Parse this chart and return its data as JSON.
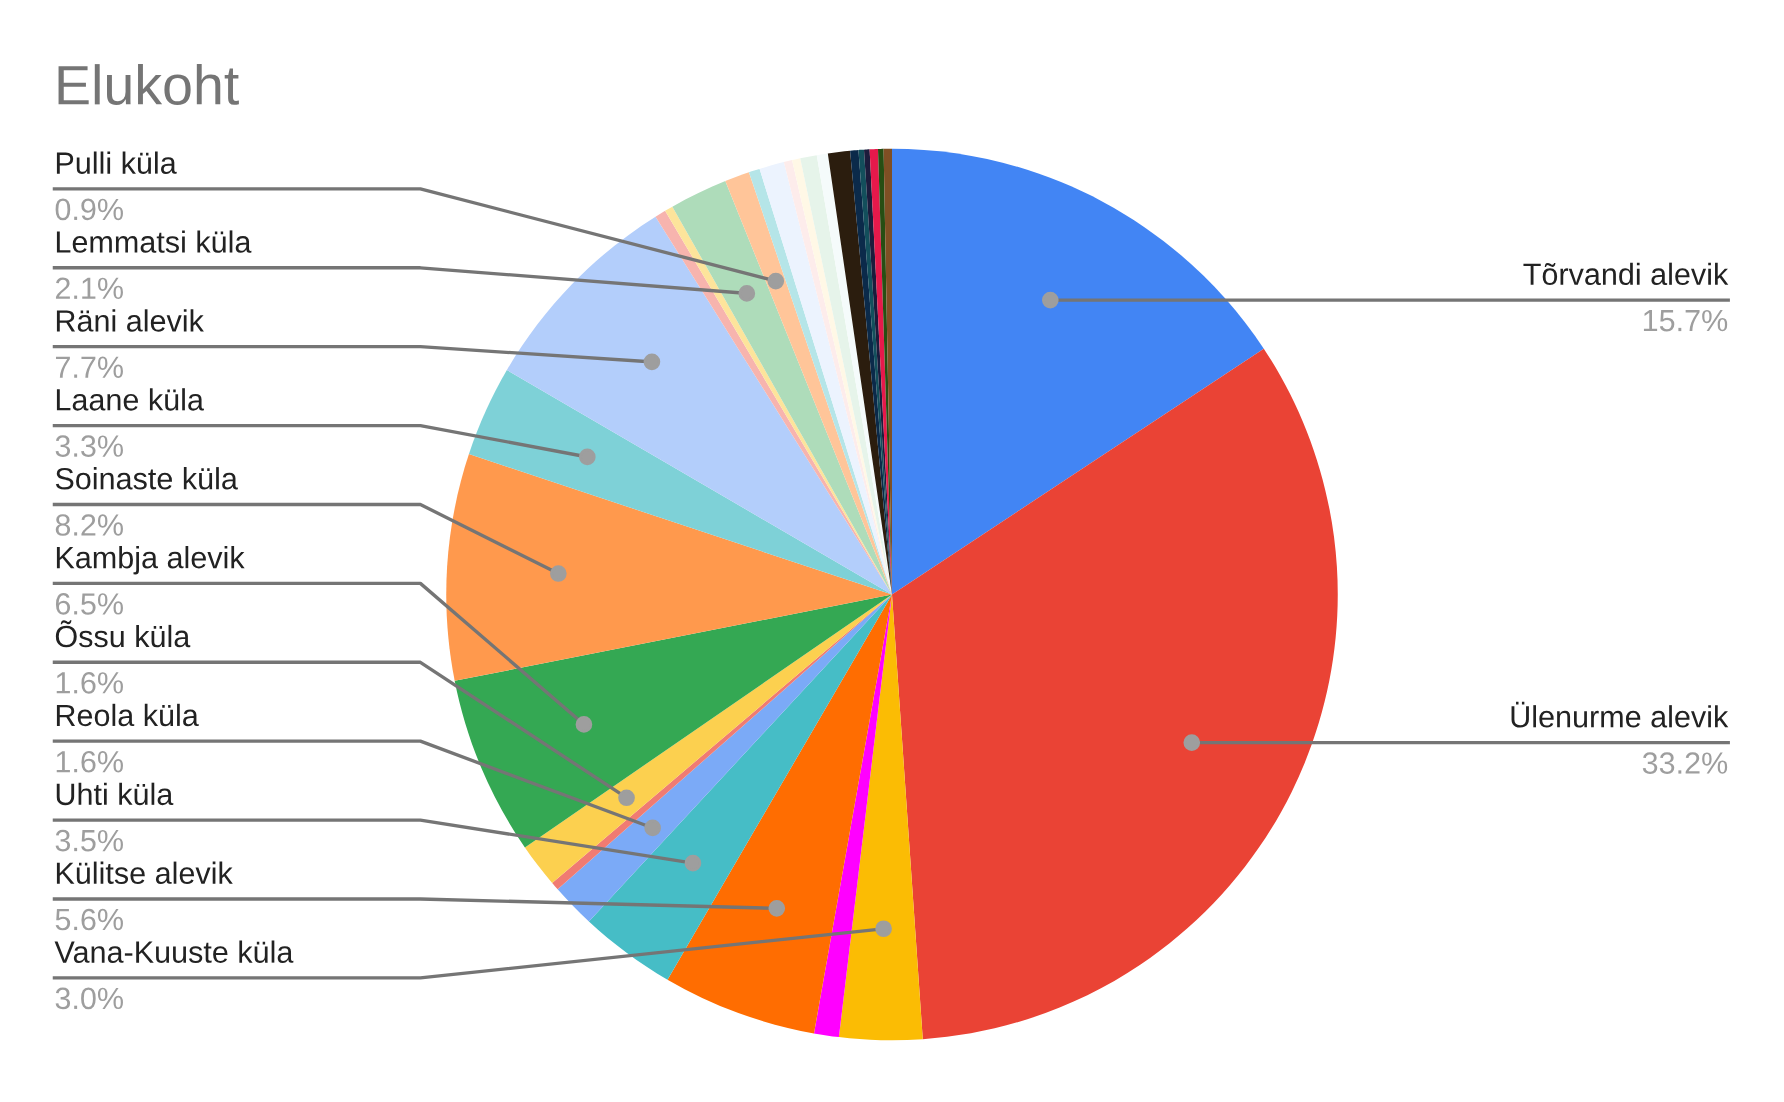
{
  "chart_data": {
    "type": "pie",
    "title": "Elukoht",
    "categories": [
      "Tõrvandi alevik",
      "Ülenurme alevik",
      "Vana-Kuuste küla",
      null,
      "Külitse alevik",
      "Uhti küla",
      "Reola küla",
      null,
      "Õssu küla",
      "Kambja alevik",
      "Soinaste küla",
      "Laane küla",
      "Räni alevik",
      null,
      null,
      "Lemmatsi küla",
      "Pulli küla",
      null,
      null,
      null,
      null,
      null,
      null,
      null,
      null,
      null,
      null,
      null,
      null,
      null
    ],
    "values": [
      15.7,
      33.2,
      3.0,
      0.9,
      5.6,
      3.5,
      1.6,
      0.3,
      1.6,
      6.5,
      8.2,
      3.3,
      7.7,
      0.4,
      0.3,
      2.1,
      0.9,
      0.4,
      0.9,
      0.3,
      0.3,
      0.6,
      0.4,
      0.8,
      0.3,
      0.2,
      0.2,
      0.3,
      0.2,
      0.3
    ],
    "colors": [
      "#4285f4",
      "#ea4335",
      "#fbbc04",
      "#ff00ff",
      "#ff6d01",
      "#46bdc6",
      "#7baaf7",
      "#f07b72",
      "#fcd04f",
      "#34a853",
      "#ff994d",
      "#7ed1d7",
      "#b3cefb",
      "#f7b4ae",
      "#fde49b",
      "#aedcba",
      "#ffc599",
      "#b5e5e8",
      "#ecf3fe",
      "#fdeceb",
      "#fff8e6",
      "#e6f4ea",
      "#f5fbfb",
      "#2b1d0e",
      "#0b2a4a",
      "#134f5c",
      "#1c1c3c",
      "#e6194b",
      "#274e13",
      "#7f4f24"
    ],
    "value_labels": [
      "15.7%",
      "33.2%",
      "3.0%",
      null,
      "5.6%",
      "3.5%",
      "1.6%",
      null,
      "1.6%",
      "6.5%",
      "8.2%",
      "3.3%",
      "7.7%",
      null,
      null,
      "2.1%",
      "0.9%",
      null,
      null,
      null,
      null,
      null,
      null,
      null,
      null,
      null,
      null,
      null,
      null,
      null
    ]
  }
}
